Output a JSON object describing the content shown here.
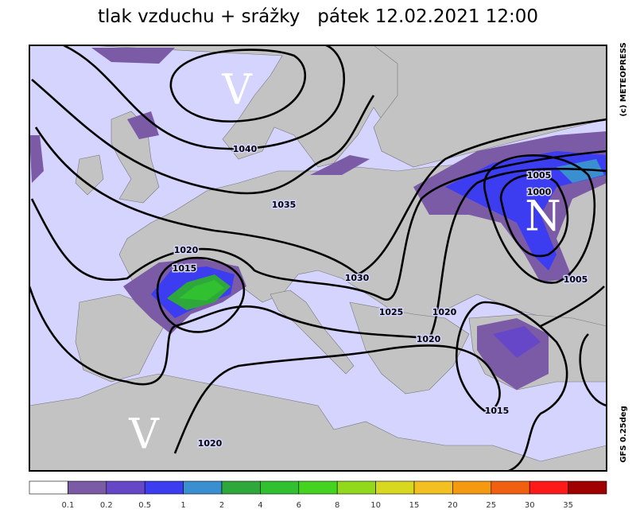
{
  "title": "tlak vzduchu + srážky   pátek 12.02.2021 12:00",
  "credit": "(c) METEOPRESS",
  "model": "GFS 0.25deg",
  "pressure_centers": [
    "V",
    "V",
    "N"
  ],
  "isobar_labels": [
    "1040",
    "1035",
    "1030",
    "1025",
    "1020",
    "1020",
    "1020",
    "1015",
    "1020",
    "1015",
    "1005",
    "1000",
    "1005"
  ],
  "legend": {
    "colors": [
      "#ffffff",
      "#7b5aa6",
      "#6647c8",
      "#3c3cf0",
      "#3a8fd0",
      "#2ea83a",
      "#30c030",
      "#44d420",
      "#92d81c",
      "#d8d820",
      "#f2c020",
      "#f59a10",
      "#f06010",
      "#ff1a1a",
      "#a00000"
    ],
    "labels": [
      "0.1",
      "0.2",
      "0.5",
      "1",
      "2",
      "4",
      "6",
      "8",
      "10",
      "15",
      "20",
      "25",
      "30",
      "35"
    ]
  }
}
